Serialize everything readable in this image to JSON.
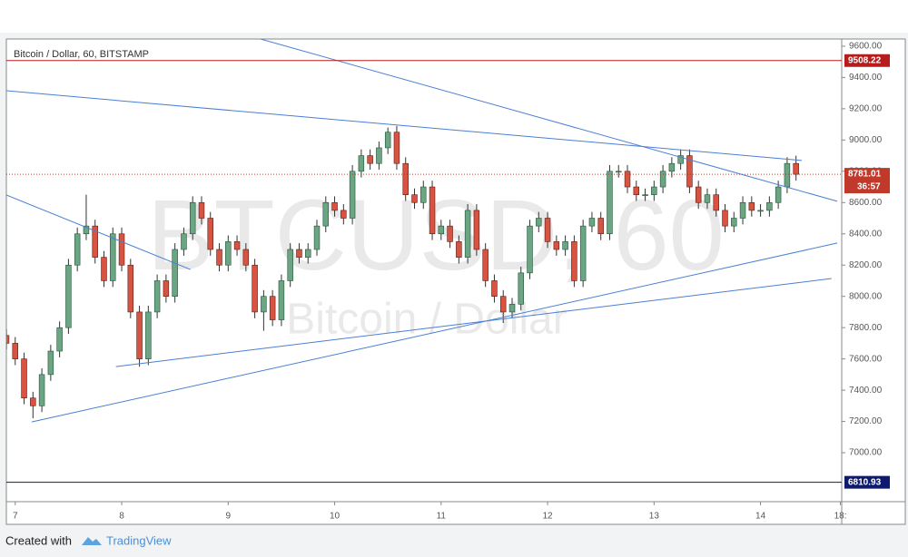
{
  "chart_data": {
    "type": "candlestick",
    "title": "Bitcoin / Dollar, 60, BITSTAMP",
    "watermark": "BTCUSD, 60",
    "watermark_sub": "Bitcoin / Dollar",
    "x": [
      -2,
      0,
      2,
      4,
      6,
      8,
      10,
      12,
      14,
      16,
      18,
      20,
      22,
      24,
      26,
      28,
      30,
      32,
      34,
      36,
      38,
      40,
      42,
      44,
      46,
      48,
      50,
      52,
      54,
      56,
      58,
      60,
      62,
      64,
      66,
      68,
      70,
      72,
      74,
      76,
      78,
      80,
      82,
      84,
      86,
      88,
      90,
      92,
      94,
      96,
      98,
      100,
      102,
      104,
      106,
      108,
      110,
      112,
      114,
      116,
      118,
      120,
      122,
      124,
      126,
      128,
      130,
      132,
      134,
      136,
      138,
      140,
      142,
      144,
      146,
      148,
      150,
      152,
      154,
      156,
      158,
      160,
      162,
      164,
      166,
      168,
      170,
      172,
      174,
      176
    ],
    "open": [
      7750,
      7700,
      7600,
      7350,
      7300,
      7500,
      7650,
      7800,
      8200,
      8400,
      8450,
      8250,
      8100,
      8400,
      8200,
      7900,
      7600,
      7900,
      8100,
      8000,
      8300,
      8400,
      8600,
      8500,
      8300,
      8200,
      8350,
      8300,
      8200,
      7900,
      8000,
      7850,
      8100,
      8300,
      8250,
      8300,
      8450,
      8600,
      8550,
      8500,
      8800,
      8900,
      8850,
      8950,
      9050,
      8850,
      8650,
      8600,
      8700,
      8400,
      8450,
      8350,
      8250,
      8550,
      8300,
      8100,
      8000,
      7900,
      7950,
      8150,
      8450,
      8500,
      8350,
      8300,
      8350,
      8100,
      8450,
      8500,
      8400,
      8800,
      8800,
      8700,
      8650,
      8650,
      8700,
      8800,
      8850,
      8900,
      8700,
      8600,
      8650,
      8550,
      8450,
      8500,
      8600,
      8550,
      8550,
      8600,
      8700,
      8850
    ],
    "high": [
      7790,
      7740,
      7640,
      7390,
      7540,
      7690,
      7840,
      8240,
      8440,
      8650,
      8490,
      8290,
      8440,
      8440,
      8240,
      7940,
      7940,
      8140,
      8140,
      8340,
      8440,
      8640,
      8640,
      8540,
      8340,
      8390,
      8390,
      8340,
      8240,
      8040,
      8040,
      8140,
      8340,
      8340,
      8340,
      8490,
      8640,
      8640,
      8590,
      8840,
      8940,
      8940,
      8990,
      9080,
      9090,
      8890,
      8690,
      8740,
      8740,
      8490,
      8490,
      8390,
      8590,
      8590,
      8340,
      8140,
      8040,
      7990,
      8190,
      8490,
      8540,
      8540,
      8390,
      8390,
      8390,
      8490,
      8540,
      8540,
      8840,
      8840,
      8840,
      8740,
      8690,
      8740,
      8840,
      8890,
      8940,
      8940,
      8740,
      8690,
      8690,
      8590,
      8540,
      8640,
      8640,
      8590,
      8640,
      8740,
      8890,
      8900
    ],
    "low": [
      7660,
      7560,
      7310,
      7220,
      7260,
      7460,
      7610,
      7760,
      8160,
      8360,
      8210,
      8060,
      8060,
      8160,
      7860,
      7550,
      7560,
      7860,
      7960,
      7960,
      8260,
      8360,
      8460,
      8260,
      8160,
      8160,
      8260,
      8160,
      7860,
      7780,
      7810,
      7810,
      8060,
      8210,
      8210,
      8260,
      8410,
      8510,
      8460,
      8460,
      8760,
      8810,
      8810,
      8910,
      8810,
      8610,
      8560,
      8560,
      8360,
      8360,
      8310,
      8210,
      8210,
      8260,
      8060,
      7960,
      7830,
      7860,
      7910,
      8110,
      8410,
      8310,
      8260,
      8260,
      8060,
      8060,
      8410,
      8360,
      8360,
      8760,
      8660,
      8610,
      8610,
      8610,
      8660,
      8760,
      8810,
      8660,
      8560,
      8560,
      8510,
      8410,
      8410,
      8460,
      8510,
      8510,
      8510,
      8560,
      8660,
      8740
    ],
    "close": [
      7700,
      7600,
      7350,
      7300,
      7500,
      7650,
      7800,
      8200,
      8400,
      8450,
      8250,
      8100,
      8400,
      8200,
      7900,
      7600,
      7900,
      8100,
      8000,
      8300,
      8400,
      8600,
      8500,
      8300,
      8200,
      8350,
      8300,
      8200,
      7900,
      8000,
      7850,
      8100,
      8300,
      8250,
      8300,
      8450,
      8600,
      8550,
      8500,
      8800,
      8900,
      8850,
      8950,
      9050,
      8850,
      8650,
      8600,
      8700,
      8400,
      8450,
      8350,
      8250,
      8550,
      8300,
      8100,
      8000,
      7900,
      7950,
      8150,
      8450,
      8500,
      8350,
      8300,
      8350,
      8100,
      8450,
      8500,
      8400,
      8800,
      8800,
      8700,
      8650,
      8650,
      8700,
      8800,
      8850,
      8900,
      8700,
      8600,
      8650,
      8550,
      8450,
      8500,
      8600,
      8550,
      8550,
      8600,
      8700,
      8850,
      8781.01
    ],
    "up_color": "#6ba583",
    "down_color": "#d75442",
    "xlim": [
      -2,
      186.3
    ],
    "xticks": [
      {
        "value": 0,
        "label": "7"
      },
      {
        "value": 24,
        "label": "8"
      },
      {
        "value": 48,
        "label": "9"
      },
      {
        "value": 72,
        "label": "10"
      },
      {
        "value": 96,
        "label": "11"
      },
      {
        "value": 120,
        "label": "12"
      },
      {
        "value": 144,
        "label": "13"
      },
      {
        "value": 168,
        "label": "14"
      },
      {
        "value": 186,
        "label": "18:"
      }
    ],
    "ylim": [
      6687,
      9646
    ],
    "yticks": [
      {
        "value": 7000,
        "label": "7000.00"
      },
      {
        "value": 7200,
        "label": "7200.00"
      },
      {
        "value": 7400,
        "label": "7400.00"
      },
      {
        "value": 7600,
        "label": "7600.00"
      },
      {
        "value": 7800,
        "label": "7800.00"
      },
      {
        "value": 8000,
        "label": "8000.00"
      },
      {
        "value": 8200,
        "label": "8200.00"
      },
      {
        "value": 8400,
        "label": "8400.00"
      },
      {
        "value": 8600,
        "label": "8600.00"
      },
      {
        "value": 8800,
        "label": "8800.00"
      },
      {
        "value": 9000,
        "label": "9000.00"
      },
      {
        "value": 9200,
        "label": "9200.00"
      },
      {
        "value": 9400,
        "label": "9400.00"
      },
      {
        "value": 9600,
        "label": "9600.00"
      }
    ],
    "grid": false,
    "levels": [
      {
        "value": 9508.22,
        "color": "#b71c1c"
      },
      {
        "value": 6810.93,
        "color": "#0d1a6e"
      }
    ],
    "last_price": 8781.01,
    "last_color": "#c0392b",
    "countdown": "36:57",
    "trendlines": [
      {
        "x": [
          55.3,
          185.3
        ],
        "y": [
          9646,
          8608
        ]
      },
      {
        "x": [
          -2,
          177.3
        ],
        "y": [
          9315,
          8869
        ]
      },
      {
        "x": [
          -2,
          39.5
        ],
        "y": [
          8648,
          8172
        ]
      },
      {
        "x": [
          3.7,
          185.3
        ],
        "y": [
          7197,
          8341
        ]
      },
      {
        "x": [
          22.7,
          184
        ],
        "y": [
          7551,
          8114
        ]
      }
    ],
    "line_color": "#4a7fd4"
  },
  "footer": {
    "created": "Created with",
    "brand": "TradingView"
  }
}
